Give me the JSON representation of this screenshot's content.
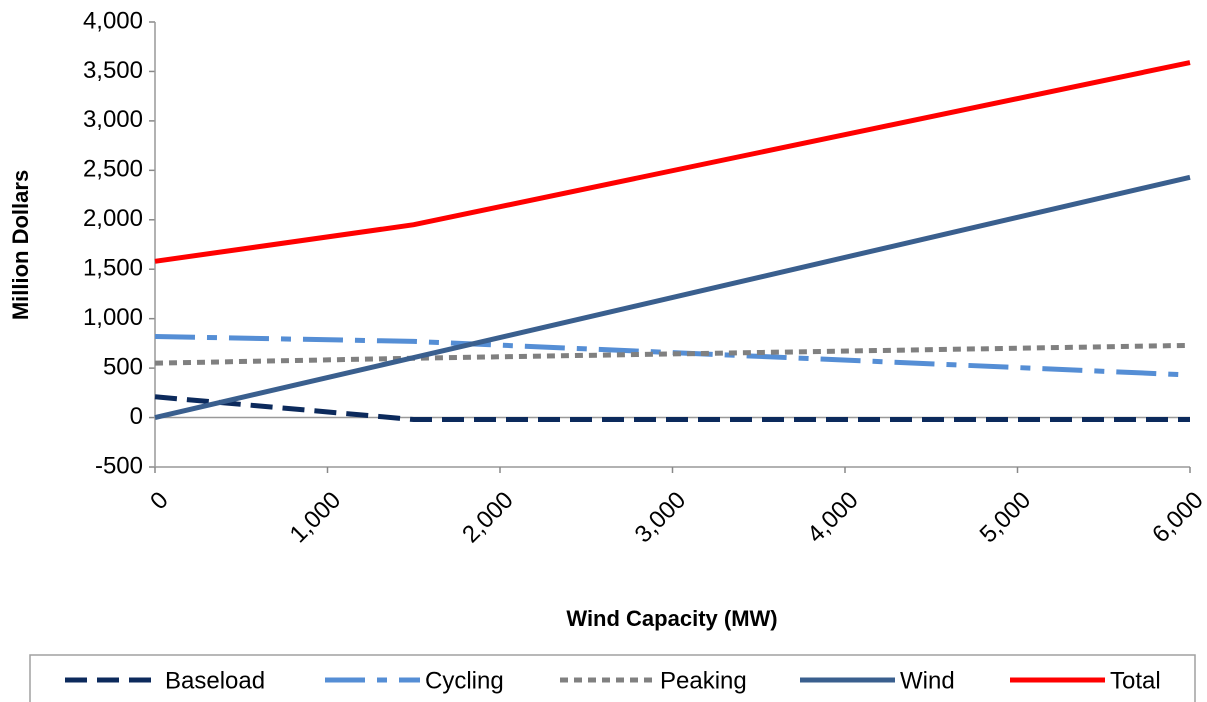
{
  "chart_data": {
    "type": "line",
    "x_label": "Wind Capacity (MW)",
    "y_label": "Million Dollars",
    "x": [
      0,
      1500,
      6000
    ],
    "series": [
      {
        "name": "Baseload",
        "color": "#0c2a5c",
        "values": [
          210,
          -20,
          -20
        ]
      },
      {
        "name": "Cycling",
        "color": "#558ed5",
        "values": [
          820,
          770,
          430
        ]
      },
      {
        "name": "Peaking",
        "color": "#808080",
        "values": [
          550,
          600,
          730
        ]
      },
      {
        "name": "Wind",
        "color": "#3a5f8e",
        "values": [
          0,
          607,
          2430
        ]
      },
      {
        "name": "Total",
        "color": "#ff0000",
        "values": [
          1580,
          1950,
          3590
        ]
      }
    ],
    "xlim": [
      0,
      6000
    ],
    "xticks": [
      0,
      {
        "value": 1000,
        "label": "1,000"
      },
      {
        "value": 2000,
        "label": "2,000"
      },
      {
        "value": 3000,
        "label": "3,000"
      },
      {
        "value": 4000,
        "label": "4,000"
      },
      {
        "value": 5000,
        "label": "5,000"
      },
      {
        "value": 6000,
        "label": "6,000"
      }
    ],
    "ylim": [
      -500,
      4000
    ],
    "yticks": [
      {
        "value": -500,
        "label": "-500"
      },
      0,
      500,
      {
        "value": 1000,
        "label": "1,000"
      },
      {
        "value": 1500,
        "label": "1,500"
      },
      {
        "value": 2000,
        "label": "2,000"
      },
      {
        "value": 2500,
        "label": "2,500"
      },
      {
        "value": 3000,
        "label": "3,000"
      },
      {
        "value": 3500,
        "label": "3,500"
      },
      {
        "value": 4000,
        "label": "4,000"
      }
    ],
    "grid": false,
    "legend": "bottom"
  }
}
